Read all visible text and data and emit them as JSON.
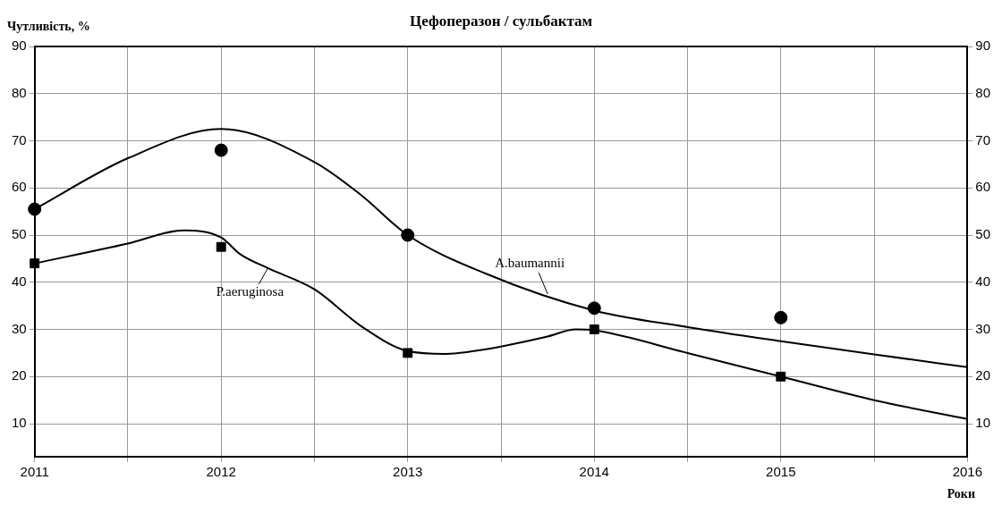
{
  "chart_data": {
    "type": "scatter",
    "title": "Цефоперазон / сульбактам",
    "ylabel": "Чутливість, %",
    "xlabel": "Роки",
    "xlim": [
      2011,
      2016
    ],
    "xticks": [
      2011,
      {
        "value": 2011.5,
        "label": null
      },
      2012,
      {
        "value": 2012.5,
        "label": null
      },
      2013,
      {
        "value": 2013.5,
        "label": null
      },
      2014,
      {
        "value": 2014.5,
        "label": null
      },
      2015,
      {
        "value": 2015.5,
        "label": null
      },
      2016
    ],
    "ylim": [
      3,
      90
    ],
    "yticks": [
      10,
      20,
      30,
      40,
      50,
      60,
      70,
      80,
      90
    ],
    "y2lim": [
      3,
      90
    ],
    "y2ticks": [
      10,
      20,
      30,
      40,
      50,
      60,
      70,
      80,
      90
    ],
    "grid": true,
    "legend": false,
    "series": [
      {
        "marker": "circle",
        "color": "#000000",
        "x": [
          2011,
          2012,
          2013,
          2014,
          2015
        ],
        "values": [
          55.5,
          68,
          50,
          34.5,
          32.5
        ]
      },
      {
        "marker": "square",
        "color": "#000000",
        "x": [
          2011,
          2012,
          2013,
          2014,
          2015
        ],
        "values": [
          44,
          47.5,
          25,
          30,
          20
        ]
      },
      {
        "type": "line",
        "marker": "none",
        "color": "#000000",
        "x": [
          2011,
          2011.5,
          2012,
          2012.5,
          2012.75,
          2013,
          2013.42,
          2014,
          2014.5,
          2015,
          2015.5,
          2016
        ],
        "values": [
          55.5,
          66.3,
          72.5,
          65.5,
          58.5,
          50,
          41.8,
          34,
          30.5,
          27.5,
          24.7,
          22
        ]
      },
      {
        "type": "line",
        "marker": "none",
        "color": "#000000",
        "x": [
          2011,
          2011.5,
          2011.8,
          2012,
          2012.1,
          2012.25,
          2012.5,
          2012.75,
          2013,
          2013.2,
          2013.42,
          2013.75,
          2013.9,
          2014,
          2014.5,
          2015,
          2015.5,
          2016
        ],
        "values": [
          44,
          48.2,
          51,
          49.5,
          46,
          43,
          38.5,
          30.7,
          25.4,
          24.8,
          25.8,
          28.5,
          30,
          29.8,
          25,
          20,
          15,
          11
        ]
      }
    ],
    "annotations": [
      {
        "text": "A.baumannii",
        "x": 2013.75,
        "y": 37.5
      },
      {
        "text": "P.aeruginosa",
        "x": 2012.25,
        "y": 43
      }
    ]
  }
}
